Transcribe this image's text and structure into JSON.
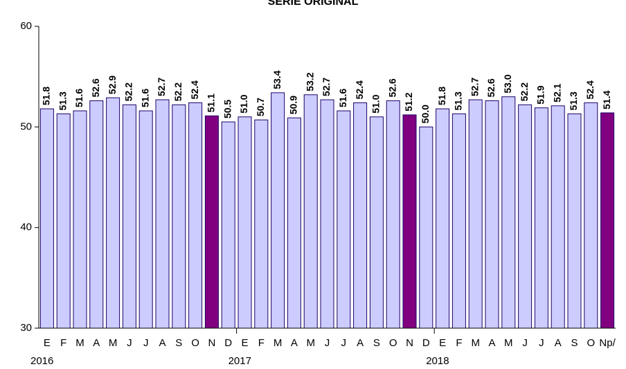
{
  "chart_data": {
    "type": "bar",
    "title": "SERIE ORIGINAL",
    "categories": [
      "E",
      "F",
      "M",
      "A",
      "M",
      "J",
      "J",
      "A",
      "S",
      "O",
      "N",
      "D",
      "E",
      "F",
      "M",
      "A",
      "M",
      "J",
      "J",
      "A",
      "S",
      "O",
      "N",
      "D",
      "E",
      "F",
      "M",
      "A",
      "M",
      "J",
      "J",
      "A",
      "S",
      "O",
      "Np/"
    ],
    "years": [
      "2016",
      null,
      null,
      null,
      null,
      null,
      null,
      null,
      null,
      null,
      null,
      null,
      "2017",
      null,
      null,
      null,
      null,
      null,
      null,
      null,
      null,
      null,
      null,
      null,
      "2018",
      null,
      null,
      null,
      null,
      null,
      null,
      null,
      null,
      null,
      null
    ],
    "values": [
      51.8,
      51.3,
      51.6,
      52.6,
      52.9,
      52.2,
      51.6,
      52.7,
      52.2,
      52.4,
      51.1,
      50.5,
      51.0,
      50.7,
      53.4,
      50.9,
      53.2,
      52.7,
      51.6,
      52.4,
      51.0,
      52.6,
      51.2,
      50.0,
      51.8,
      51.3,
      52.7,
      52.6,
      53.0,
      52.2,
      51.9,
      52.1,
      51.3,
      52.4,
      51.4
    ],
    "value_labels": [
      "51.8",
      "51.3",
      "51.6",
      "52.6",
      "52.9",
      "52.2",
      "51.6",
      "52.7",
      "52.2",
      "52.4",
      "51.1",
      "50.5",
      "51.0",
      "50.7",
      "53.4",
      "50.9",
      "53.2",
      "52.7",
      "51.6",
      "52.4",
      "51.0",
      "52.6",
      "51.2",
      "50.0",
      "51.8",
      "51.3",
      "52.7",
      "52.6",
      "53.0",
      "52.2",
      "51.9",
      "52.1",
      "51.3",
      "52.4",
      "51.4"
    ],
    "colors": [
      "#ccccff",
      "#ccccff",
      "#ccccff",
      "#ccccff",
      "#ccccff",
      "#ccccff",
      "#ccccff",
      "#ccccff",
      "#ccccff",
      "#ccccff",
      "#800080",
      "#ccccff",
      "#ccccff",
      "#ccccff",
      "#ccccff",
      "#ccccff",
      "#ccccff",
      "#ccccff",
      "#ccccff",
      "#ccccff",
      "#ccccff",
      "#ccccff",
      "#800080",
      "#ccccff",
      "#ccccff",
      "#ccccff",
      "#ccccff",
      "#ccccff",
      "#ccccff",
      "#ccccff",
      "#ccccff",
      "#ccccff",
      "#ccccff",
      "#ccccff",
      "#800080"
    ],
    "ylim": [
      30,
      60
    ],
    "yticks": [
      30,
      40,
      50,
      60
    ],
    "grid": false
  }
}
